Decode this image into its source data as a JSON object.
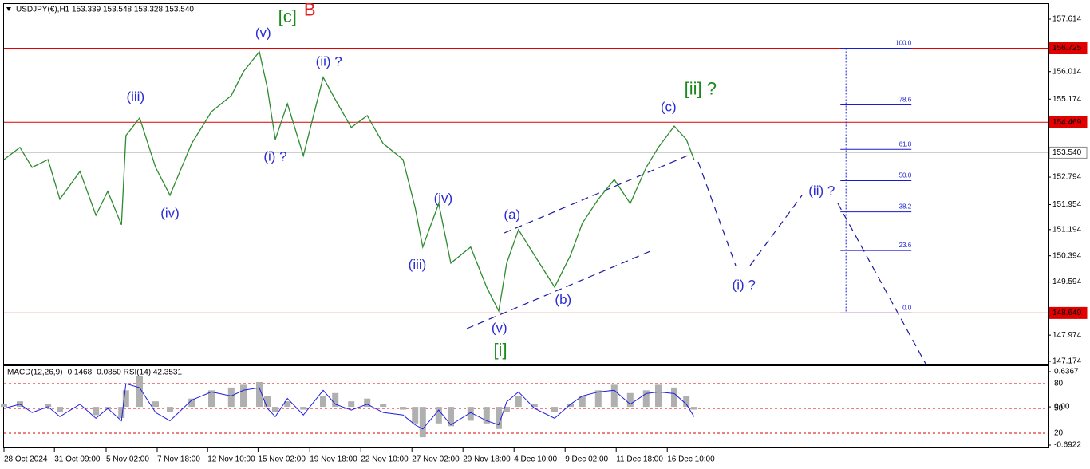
{
  "header": "USDJPY(€),H1  153.339 153.548 153.328 153.540",
  "chart_data": [
    {
      "type": "line",
      "color": "#2e8b2e",
      "x": [
        0,
        2.5,
        4.4,
        6.9,
        8.75,
        11.9,
        14.4,
        16.25,
        18.4,
        19.1,
        21.25,
        23.75,
        26,
        29.4,
        32.5,
        35.6,
        37.5,
        40,
        41.25,
        42.5,
        44.4,
        46.9,
        50,
        51.9,
        54.4,
        56.9,
        59.4,
        62.5,
        64.4,
        65.6,
        68.1,
        70,
        73.1,
        75.6,
        77.5,
        78.75,
        80.6,
        83.1,
        86.25,
        88.75,
        90.6,
        93.1,
        95.6,
        98.1,
        100.6,
        102.5,
        105,
        106.9,
        108.1
      ],
      "values": [
        153.33,
        153.7,
        153.09,
        153.33,
        152.12,
        152.97,
        151.63,
        152.36,
        151.34,
        154.06,
        154.6,
        153.09,
        152.24,
        153.82,
        154.79,
        155.28,
        156.01,
        156.62,
        155.52,
        153.94,
        155.03,
        153.45,
        155.84,
        155.16,
        154.31,
        154.67,
        153.82,
        153.33,
        151.87,
        150.66,
        151.99,
        150.17,
        150.66,
        149.44,
        148.71,
        150.17,
        151.19,
        150.41,
        149.44,
        150.41,
        151.39,
        152.12,
        152.72,
        151.99,
        153.09,
        153.7,
        154.35,
        153.94,
        153.33
      ],
      "xlim": [
        0,
        163.5
      ],
      "xticks": [
        {
          "value": 0,
          "label": "28 Oct 2024"
        },
        {
          "value": 7.9,
          "label": "31 Oct 09:00"
        },
        {
          "value": 16,
          "label": "5 Nov 02:00"
        },
        {
          "value": 24,
          "label": "7 Nov 18:00"
        },
        {
          "value": 31.9,
          "label": "12 Nov 10:00"
        },
        {
          "value": 39.8,
          "label": "15 Nov 02:00"
        },
        {
          "value": 47.9,
          "label": "19 Nov 18:00"
        },
        {
          "value": 55.9,
          "label": "22 Nov 10:00"
        },
        {
          "value": 63.9,
          "label": "27 Nov 02:00"
        },
        {
          "value": 71.9,
          "label": "29 Nov 18:00"
        },
        {
          "value": 79.9,
          "label": "4 Dec 10:00"
        },
        {
          "value": 87.9,
          "label": "9 Dec 02:00"
        },
        {
          "value": 95.9,
          "label": "11 Dec 18:00"
        },
        {
          "value": 103.9,
          "label": "16 Dec 10:00"
        }
      ],
      "ylim": [
        147.101,
        158.076
      ],
      "yticks": [
        157.614,
        156.014,
        155.174,
        152.794,
        151.954,
        151.194,
        150.394,
        149.594,
        147.974,
        147.174
      ],
      "hlines": [
        {
          "value": 156.725,
          "color": "#e00000"
        },
        {
          "value": 154.469,
          "color": "#e00000"
        },
        {
          "value": 148.649,
          "color": "#e00000"
        },
        {
          "value": 153.54,
          "label": "153.540",
          "color": "#c8c8c8"
        }
      ],
      "fib": {
        "x": 131.9,
        "color": "#1a1ad0",
        "levels": [
          {
            "label": "100.0",
            "price": 156.725
          },
          {
            "label": "78.6",
            "price": 154.997
          },
          {
            "label": "61.8",
            "price": 153.64
          },
          {
            "label": "50.0",
            "price": 152.687
          },
          {
            "label": "38.2",
            "price": 151.734
          },
          {
            "label": "23.6",
            "price": 150.555
          },
          {
            "label": "0.0",
            "price": 148.649
          }
        ]
      },
      "annotations": [
        {
          "text": "[c]",
          "x": 44.4,
          "y": 157.66,
          "color": "#1a8a1a"
        },
        {
          "text": "B",
          "x": 47.9,
          "y": 157.86,
          "color": "#e02020"
        },
        {
          "text": "(v)",
          "x": 40.6,
          "y": 157.18,
          "color": "#2b2bd4"
        },
        {
          "text": "(iii)",
          "x": 20.6,
          "y": 155.23,
          "color": "#2b2bd4"
        },
        {
          "text": "(ii) ?",
          "x": 50.9,
          "y": 156.3,
          "color": "#2b2bd4"
        },
        {
          "text": "(i) ?",
          "x": 42.5,
          "y": 153.4,
          "color": "#2b2bd4"
        },
        {
          "text": "(iv)",
          "x": 26,
          "y": 151.68,
          "color": "#2b2bd4"
        },
        {
          "text": "(iv)",
          "x": 68.8,
          "y": 152.12,
          "color": "#2b2bd4"
        },
        {
          "text": "(iii)",
          "x": 64.75,
          "y": 150.1,
          "color": "#2b2bd4"
        },
        {
          "text": "(a)",
          "x": 79.6,
          "y": 151.63,
          "color": "#2b2bd4"
        },
        {
          "text": "(b)",
          "x": 87.6,
          "y": 149.03,
          "color": "#2b2bd4"
        },
        {
          "text": "(v)",
          "x": 77.6,
          "y": 148.17,
          "color": "#2b2bd4"
        },
        {
          "text": "[i]",
          "x": 77.75,
          "y": 147.49,
          "color": "#1a8a1a"
        },
        {
          "text": "(c)",
          "x": 104.1,
          "y": 154.91,
          "color": "#2b2bd4"
        },
        {
          "text": "[ii] ?",
          "x": 109.1,
          "y": 155.45,
          "color": "#1a8a1a"
        },
        {
          "text": "(ii) ?",
          "x": 128.1,
          "y": 152.36,
          "color": "#2b2bd4"
        },
        {
          "text": "(i) ?",
          "x": 115.9,
          "y": 149.49,
          "color": "#2b2bd4"
        }
      ]
    },
    {
      "type": "line",
      "title": "MACD(12,26,9) -0.1468 -0.0850  RSI(14) 42.3531",
      "ylim": [
        3.5,
        101.3
      ],
      "yticks": [
        80,
        50,
        20
      ],
      "y2lim": [
        -0.721,
        0.738
      ],
      "y2ticks": [
        0.6367,
        {
          "value": 0,
          "label": "0.00"
        },
        -0.6922
      ],
      "series": [
        {
          "color": "#b0b0b0",
          "axis": "y2",
          "style": "histogram",
          "values": [
            0.05,
            0.1,
            0,
            0.05,
            -0.1,
            0,
            -0.15,
            -0.05,
            -0.2,
            0.3,
            0.55,
            0.1,
            -0.1,
            0.15,
            0.3,
            0.35,
            0.4,
            0.45,
            0.2,
            -0.1,
            0.1,
            -0.05,
            0.2,
            0.25,
            0.1,
            0.15,
            0.05,
            -0.05,
            -0.3,
            -0.55,
            -0.3,
            -0.35,
            -0.25,
            -0.3,
            -0.4,
            -0.1,
            0.2,
            0.05,
            -0.1,
            0.05,
            0.2,
            0.3,
            0.4,
            0.25,
            0.3,
            0.4,
            0.35,
            0.2,
            -0.05
          ]
        },
        {
          "color": "#1f1fe0",
          "values": [
            50,
            55,
            45,
            52,
            40,
            55,
            38,
            50,
            35,
            80,
            75,
            45,
            35,
            60,
            70,
            65,
            72,
            75,
            50,
            40,
            62,
            42,
            72,
            55,
            48,
            55,
            45,
            42,
            30,
            25,
            48,
            30,
            45,
            35,
            30,
            58,
            70,
            50,
            38,
            55,
            65,
            70,
            72,
            55,
            68,
            70,
            68,
            55,
            40
          ]
        }
      ]
    }
  ]
}
